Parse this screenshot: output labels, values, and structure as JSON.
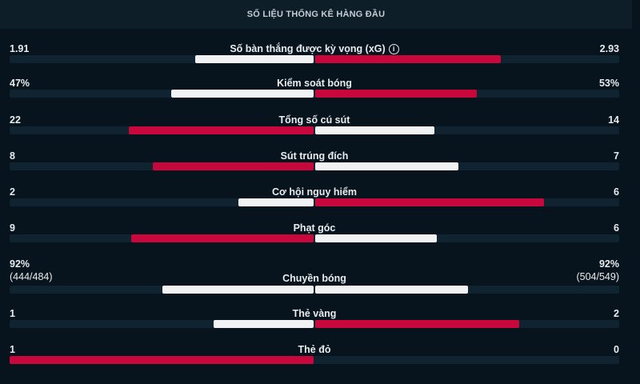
{
  "title": "SỐ LIỆU THỐNG KÊ HÀNG ĐẦU",
  "colors": {
    "white": "#f1f2f4",
    "red": "#c8083d"
  },
  "stats": [
    {
      "label": "Số bàn thắng được kỳ vọng (xG)",
      "info_icon": "info-icon",
      "left": "1.91",
      "right": "2.93",
      "left_fill": 0.39,
      "right_fill": 0.61,
      "left_color": "white",
      "right_color": "red"
    },
    {
      "label": "Kiểm soát bóng",
      "left": "47%",
      "right": "53%",
      "left_fill": 0.47,
      "right_fill": 0.53,
      "left_color": "white",
      "right_color": "red"
    },
    {
      "label": "Tổng số cú sút",
      "left": "22",
      "right": "14",
      "left_fill": 0.61,
      "right_fill": 0.39,
      "left_color": "red",
      "right_color": "white"
    },
    {
      "label": "Sút trúng đích",
      "left": "8",
      "right": "7",
      "left_fill": 0.53,
      "right_fill": 0.47,
      "left_color": "red",
      "right_color": "white"
    },
    {
      "label": "Cơ hội nguy hiểm",
      "left": "2",
      "right": "6",
      "left_fill": 0.25,
      "right_fill": 0.75,
      "left_color": "white",
      "right_color": "red"
    },
    {
      "label": "Phạt góc",
      "left": "9",
      "right": "6",
      "left_fill": 0.6,
      "right_fill": 0.4,
      "left_color": "red",
      "right_color": "white"
    },
    {
      "label": "Chuyền bóng",
      "left": "92%",
      "left_sub": "(444/484)",
      "right": "92%",
      "right_sub": "(504/549)",
      "left_fill": 0.5,
      "right_fill": 0.5,
      "left_color": "white",
      "right_color": "white"
    },
    {
      "label": "Thẻ vàng",
      "left": "1",
      "right": "2",
      "left_fill": 0.33,
      "right_fill": 0.67,
      "left_color": "white",
      "right_color": "red"
    },
    {
      "label": "Thẻ đỏ",
      "left": "1",
      "right": "0",
      "left_fill": 1.0,
      "right_fill": 0,
      "left_color": "red",
      "right_color": "white"
    }
  ]
}
